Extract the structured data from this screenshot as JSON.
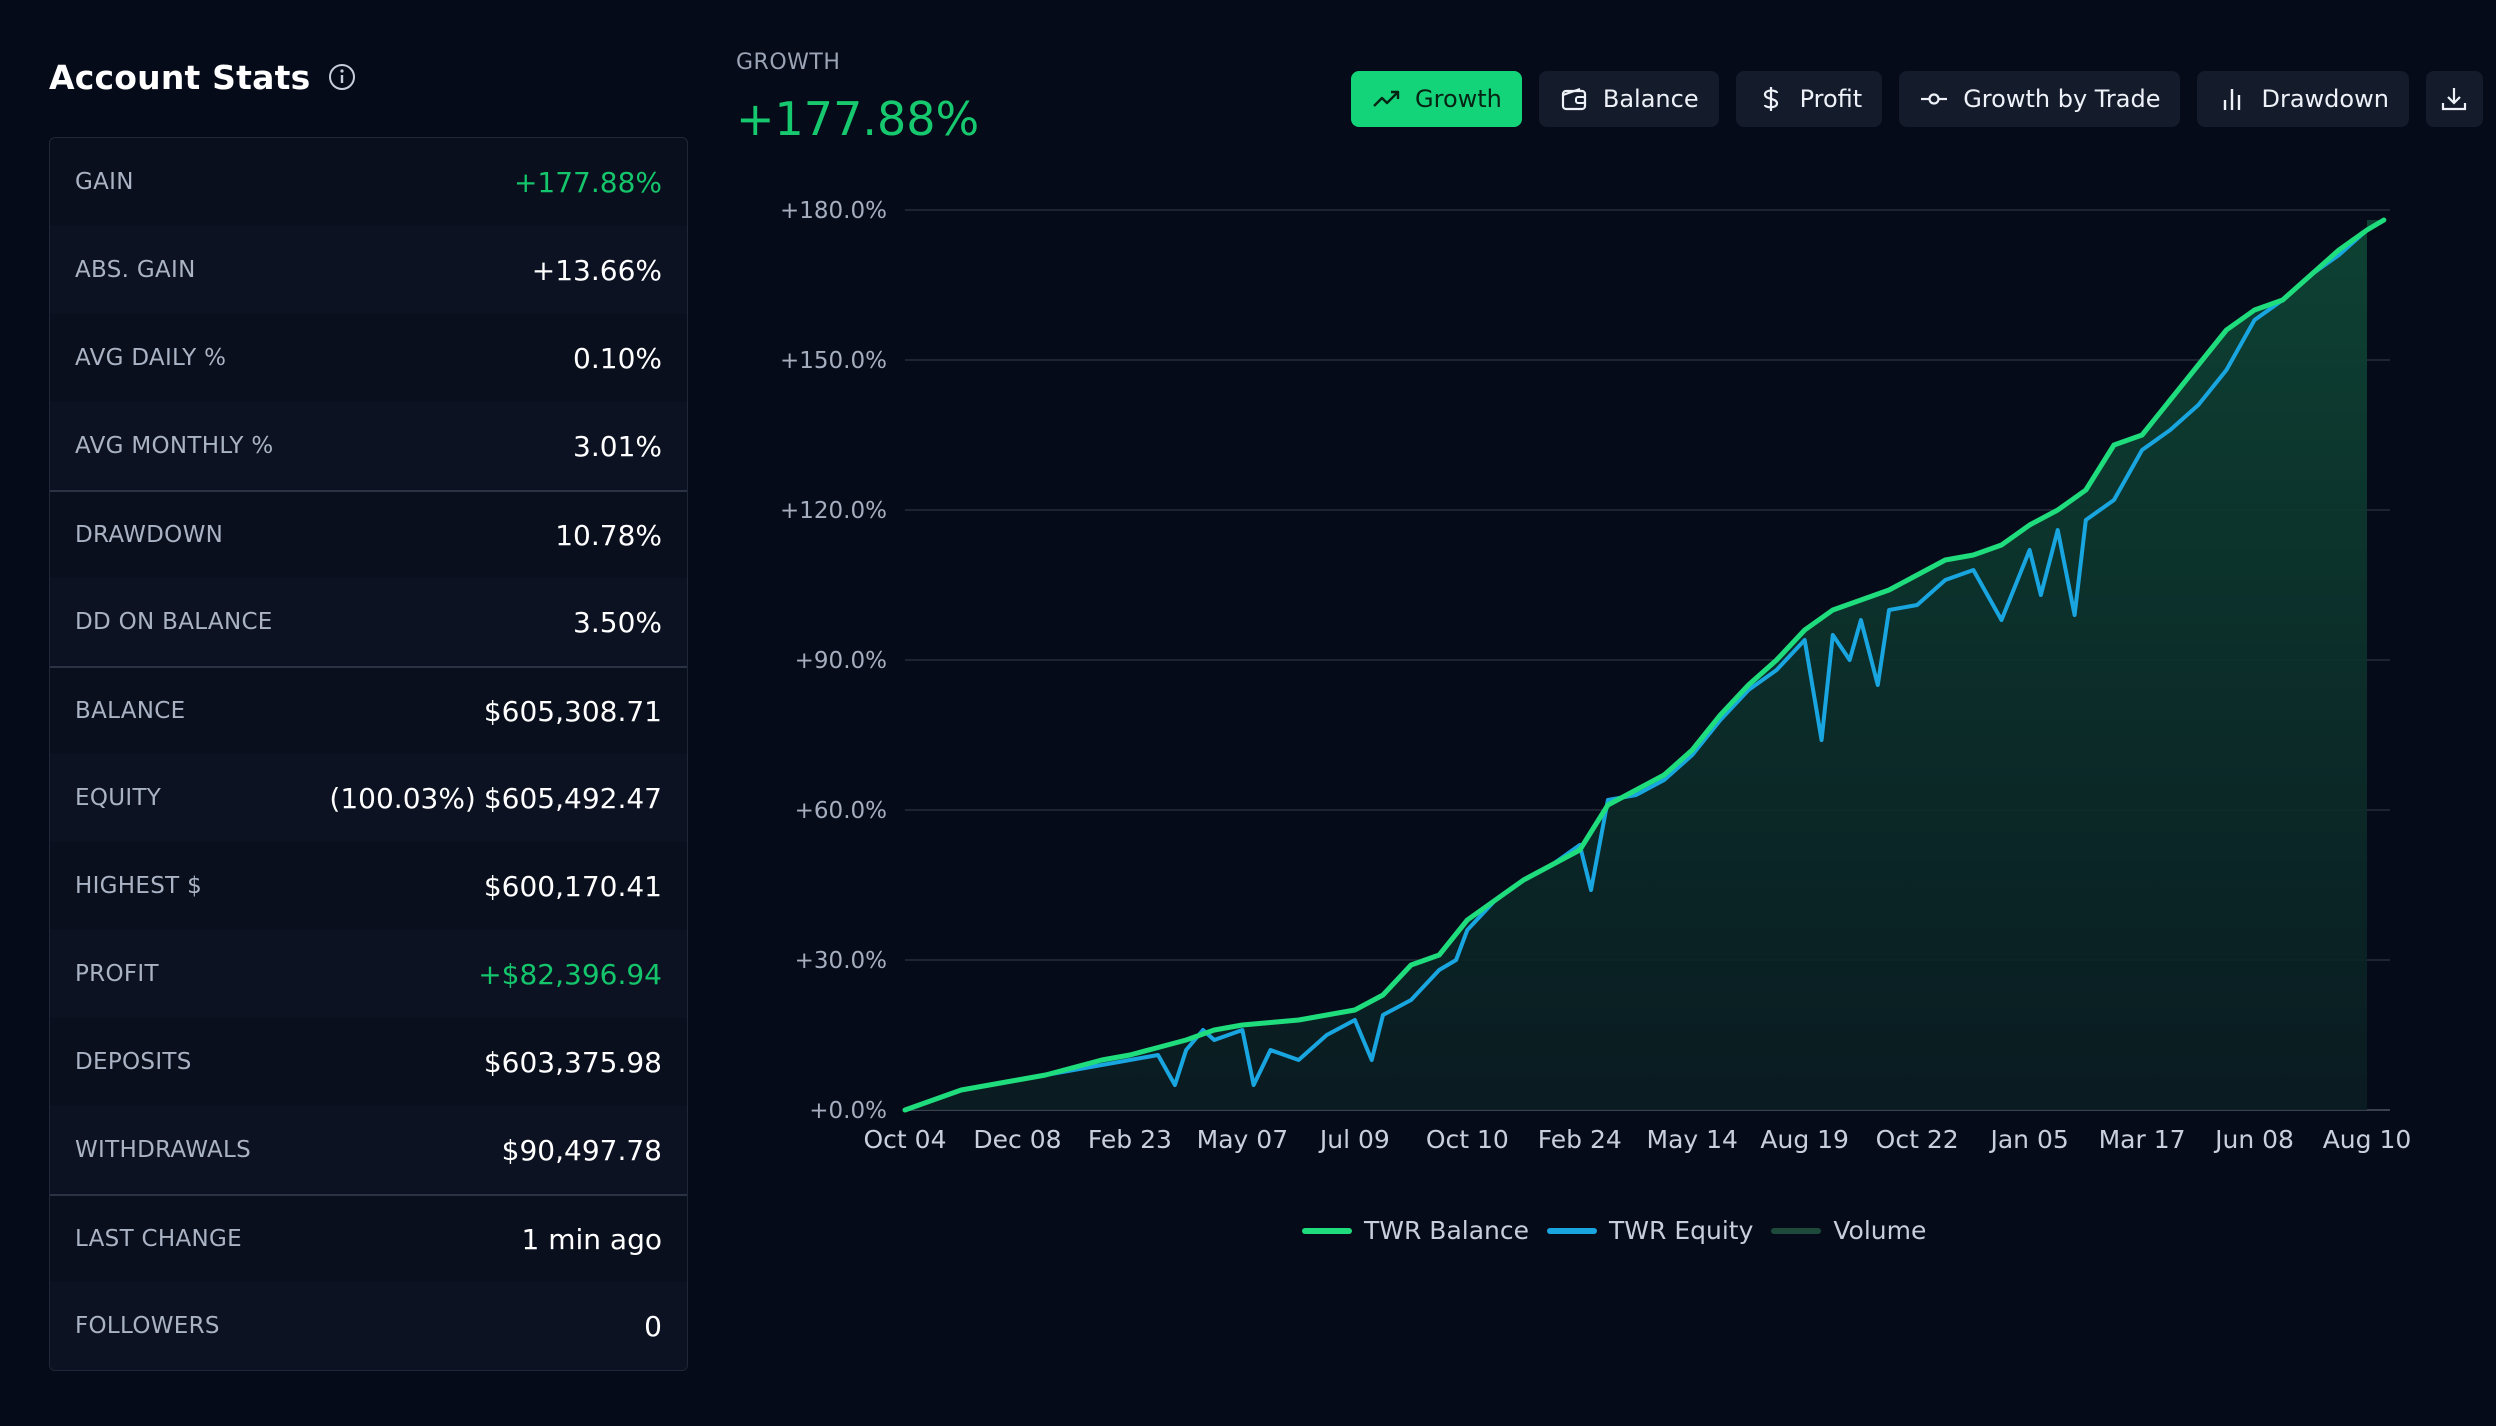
{
  "panel": {
    "title": "Account Stats",
    "info_icon": "info-circle-icon"
  },
  "stats": [
    {
      "label": "GAIN",
      "value": "+177.88%",
      "positive": true
    },
    {
      "label": "ABS. GAIN",
      "value": "+13.66%"
    },
    {
      "label": "AVG DAILY %",
      "value": "0.10%"
    },
    {
      "label": "AVG MONTHLY %",
      "value": "3.01%"
    },
    {
      "label": "DRAWDOWN",
      "value": "10.78%",
      "group_start": true
    },
    {
      "label": "DD ON BALANCE",
      "value": "3.50%"
    },
    {
      "label": "BALANCE",
      "value": "$605,308.71",
      "group_start": true
    },
    {
      "label": "EQUITY",
      "value": "$605,492.47",
      "prefix": "(100.03%)"
    },
    {
      "label": "HIGHEST $",
      "value": "$600,170.41"
    },
    {
      "label": "PROFIT",
      "value": "+$82,396.94",
      "positive": true
    },
    {
      "label": "DEPOSITS",
      "value": "$603,375.98"
    },
    {
      "label": "WITHDRAWALS",
      "value": "$90,497.78"
    },
    {
      "label": "LAST CHANGE",
      "value": "1 min ago",
      "group_start": true
    },
    {
      "label": "FOLLOWERS",
      "value": "0"
    }
  ],
  "header": {
    "label": "GROWTH",
    "value": "+177.88%"
  },
  "tabs": [
    {
      "label": "Growth",
      "icon": "trending-up-icon",
      "active": true
    },
    {
      "label": "Balance",
      "icon": "wallet-icon"
    },
    {
      "label": "Profit",
      "icon": "dollar-icon"
    },
    {
      "label": "Growth by Trade",
      "icon": "commit-icon"
    },
    {
      "label": "Drawdown",
      "icon": "bar-chart-icon"
    }
  ],
  "download_icon": "download-icon",
  "colors": {
    "accent": "#14d47a",
    "twr_balance": "#1fdc7c",
    "twr_equity": "#19a6e0",
    "volume": "#1d4a3b",
    "background": "#060b19"
  },
  "chart_data": {
    "type": "line",
    "y_tick_labels": [
      "+0.0%",
      "+30.0%",
      "+60.0%",
      "+90.0%",
      "+120.0%",
      "+150.0%",
      "+180.0%"
    ],
    "ylim": [
      0,
      180
    ],
    "x_tick_labels": [
      "Oct 04",
      "Dec 08",
      "Feb 23",
      "May 07",
      "Jul 09",
      "Oct 10",
      "Feb 24",
      "May 14",
      "Aug 19",
      "Oct 22",
      "Jan 05",
      "Mar 17",
      "Jun 08",
      "Aug 10"
    ],
    "grid": true,
    "legend_position": "bottom",
    "series": [
      {
        "name": "TWR Balance",
        "x": [
          0,
          0.25,
          0.5,
          0.75,
          1,
          1.25,
          1.5,
          1.75,
          2,
          2.25,
          2.5,
          2.75,
          3,
          3.25,
          3.5,
          3.75,
          4,
          4.25,
          4.5,
          4.75,
          5,
          5.25,
          5.5,
          5.75,
          6,
          6.25,
          6.5,
          6.75,
          7,
          7.25,
          7.5,
          7.75,
          8,
          8.25,
          8.5,
          8.75,
          9,
          9.25,
          9.5,
          9.75,
          10,
          10.25,
          10.5,
          10.75,
          11,
          11.25,
          11.5,
          11.75,
          12,
          12.25,
          12.5,
          12.75,
          13,
          13.15
        ],
        "values": [
          0,
          2,
          4,
          5,
          6,
          7,
          8.5,
          10,
          11,
          12.5,
          14,
          16,
          17,
          17.5,
          18,
          19,
          20,
          23,
          29,
          31,
          38,
          42,
          46,
          49,
          52,
          61,
          64,
          67,
          72,
          79,
          85,
          90,
          96,
          100,
          102,
          104,
          107,
          110,
          111,
          113,
          117,
          120,
          124,
          133,
          135,
          142,
          149,
          156,
          160,
          162,
          167,
          172,
          176,
          178
        ]
      },
      {
        "name": "TWR Equity",
        "x": [
          0,
          0.25,
          0.5,
          0.75,
          1,
          1.25,
          1.5,
          1.75,
          2,
          2.25,
          2.4,
          2.5,
          2.65,
          2.75,
          3,
          3.1,
          3.25,
          3.5,
          3.75,
          4,
          4.15,
          4.25,
          4.5,
          4.75,
          4.9,
          5,
          5.25,
          5.5,
          5.75,
          6,
          6.1,
          6.25,
          6.5,
          6.75,
          7,
          7.25,
          7.5,
          7.75,
          8,
          8.15,
          8.25,
          8.4,
          8.5,
          8.65,
          8.75,
          9,
          9.25,
          9.5,
          9.75,
          10,
          10.1,
          10.25,
          10.4,
          10.5,
          10.75,
          11,
          11.25,
          11.5,
          11.75,
          12,
          12.25,
          12.5,
          12.75,
          13,
          13.15
        ],
        "values": [
          0,
          2,
          4,
          5,
          6,
          7,
          8,
          9,
          10,
          11,
          5,
          12,
          16,
          14,
          16,
          5,
          12,
          10,
          15,
          18,
          10,
          19,
          22,
          28,
          30,
          36,
          42,
          46,
          49,
          53,
          44,
          62,
          63,
          66,
          71,
          78,
          84,
          88,
          94,
          74,
          95,
          90,
          98,
          85,
          100,
          101,
          106,
          108,
          98,
          112,
          103,
          116,
          99,
          118,
          122,
          132,
          136,
          141,
          148,
          158,
          162,
          167,
          171,
          176,
          178
        ]
      }
    ]
  }
}
